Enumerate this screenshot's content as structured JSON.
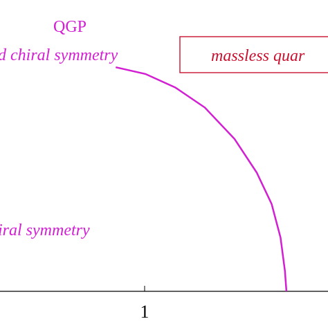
{
  "colors": {
    "magenta": "#d21fd2",
    "red": "#c8102e",
    "axis": "#000000"
  },
  "labels": {
    "phase_qgp": "QGP",
    "restored_chiral": "d chiral symmetry",
    "massless_quarks": "massless quar",
    "broken_chiral": "iral symmetry"
  },
  "axis": {
    "x_tick_label": "1"
  },
  "chart_data": {
    "type": "line",
    "x": [
      0.0,
      0.2,
      0.4,
      0.6,
      0.8,
      0.95,
      1.05,
      1.11,
      1.14,
      1.15
    ],
    "y": [
      1.0,
      0.97,
      0.91,
      0.82,
      0.68,
      0.53,
      0.39,
      0.24,
      0.09,
      0.0
    ],
    "xlim": [
      -0.78,
      1.43
    ],
    "ylim": [
      0,
      1.3
    ],
    "x_ticks": [
      1
    ],
    "grid": false,
    "legend": false
  }
}
